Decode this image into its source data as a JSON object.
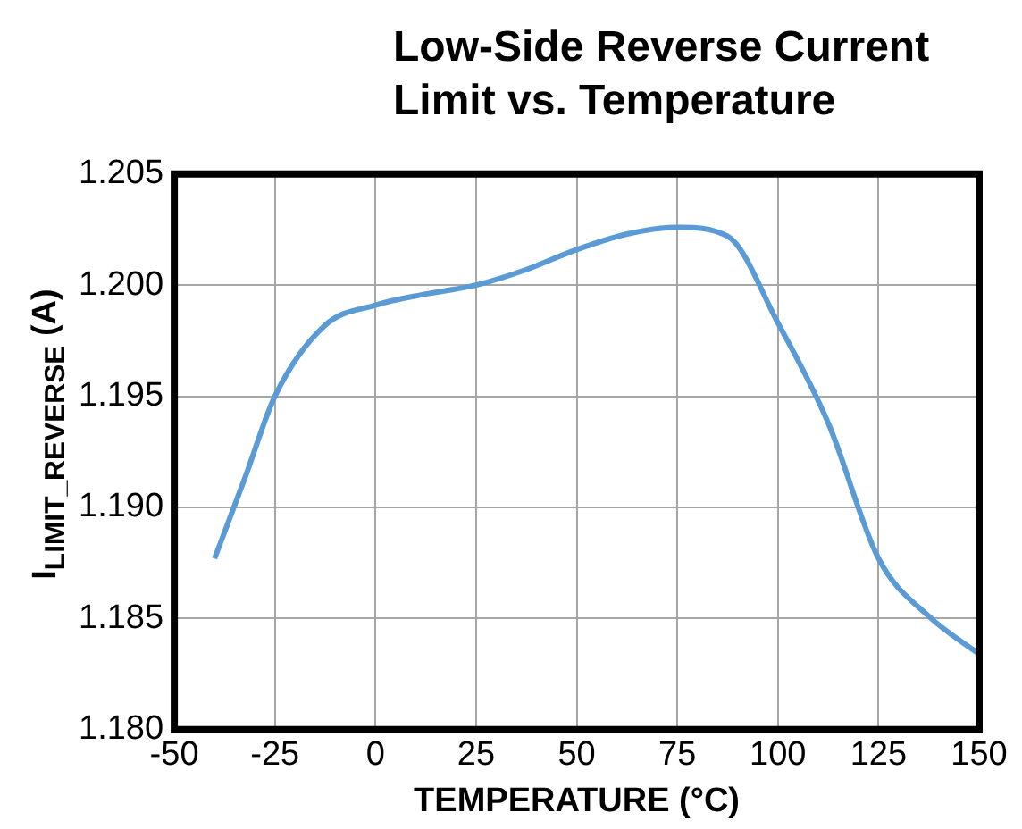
{
  "chart_data": {
    "type": "line",
    "title": "Low-Side Reverse Current Limit vs. Temperature",
    "xlabel": "TEMPERATURE (°C)",
    "ylabel": "I$_{LIMIT_REVERSE}$ (A)",
    "x": [
      -40,
      -32.5,
      -25,
      -12.5,
      0,
      12.5,
      25,
      37.5,
      50,
      62.5,
      75,
      87.5,
      100,
      112.5,
      125,
      137.5,
      150
    ],
    "series": [
      {
        "color": "#5b9bd5",
        "values": [
          1.1877,
          1.1913,
          1.195,
          1.1982,
          1.1991,
          1.1996,
          1.2,
          1.2007,
          1.2016,
          1.2023,
          1.2026,
          1.2022,
          1.1983,
          1.1938,
          1.1877,
          1.1851,
          1.1834
        ]
      }
    ],
    "xlim": [
      -50,
      150
    ],
    "xticks": [
      -50,
      -25,
      0,
      25,
      50,
      75,
      100,
      125,
      150
    ],
    "ylim": [
      1.18,
      1.205
    ],
    "yticks": [
      {
        "value": 1.18,
        "label": "1.180"
      },
      {
        "value": 1.185,
        "label": "1.185"
      },
      {
        "value": 1.19,
        "label": "1.190"
      },
      {
        "value": 1.195,
        "label": "1.195"
      },
      {
        "value": 1.2,
        "label": "1.200"
      },
      {
        "value": 1.205,
        "label": "1.205"
      }
    ],
    "grid": true,
    "legend": false,
    "marker": "none",
    "line_style": "solid"
  }
}
